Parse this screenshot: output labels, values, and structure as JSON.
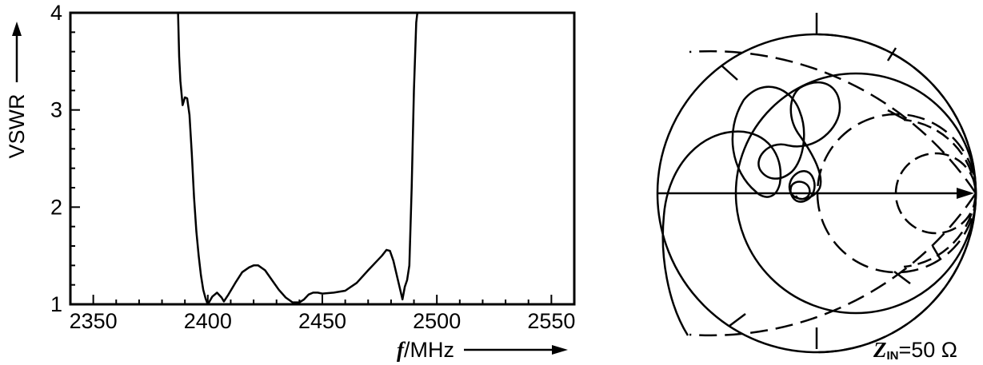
{
  "chart_data": [
    {
      "type": "line",
      "ylabel": "VSWR",
      "xlabel_symbol": "f",
      "xlabel_unit": "/MHz",
      "xlim": [
        2340,
        2560
      ],
      "ylim": [
        1,
        4
      ],
      "x_ticks": [
        2350,
        2400,
        2450,
        2500,
        2550
      ],
      "y_ticks": [
        1,
        2,
        3,
        4
      ],
      "grid": false,
      "series": [
        {
          "x": [
            2387,
            2387.5,
            2388,
            2389,
            2390,
            2391,
            2392,
            2393,
            2394,
            2395,
            2396,
            2397,
            2398,
            2399,
            2400,
            2401,
            2402,
            2404,
            2406,
            2407,
            2409,
            2412,
            2415,
            2418,
            2420,
            2422,
            2425,
            2428,
            2431,
            2434,
            2437,
            2440,
            2442,
            2444,
            2446,
            2448,
            2450,
            2455,
            2460,
            2465,
            2470,
            2474,
            2476,
            2478,
            2479.5,
            2481,
            2483,
            2485,
            2486,
            2487,
            2488,
            2489,
            2490,
            2491,
            2491.5
          ],
          "y": [
            4.0,
            3.55,
            3.3,
            3.05,
            3.13,
            3.12,
            2.95,
            2.55,
            2.1,
            1.75,
            1.5,
            1.3,
            1.15,
            1.06,
            1.0,
            1.04,
            1.08,
            1.12,
            1.07,
            1.03,
            1.1,
            1.22,
            1.33,
            1.38,
            1.4,
            1.4,
            1.35,
            1.25,
            1.15,
            1.07,
            1.02,
            1.02,
            1.05,
            1.1,
            1.12,
            1.12,
            1.11,
            1.12,
            1.14,
            1.22,
            1.35,
            1.45,
            1.5,
            1.56,
            1.55,
            1.45,
            1.25,
            1.05,
            1.18,
            1.25,
            1.4,
            2.2,
            3.2,
            3.9,
            4.0
          ]
        }
      ]
    },
    {
      "type": "smith",
      "label_main": "Z",
      "label_sub": "IN",
      "label_value": "=50  Ω",
      "arrow_direction": "right"
    }
  ]
}
